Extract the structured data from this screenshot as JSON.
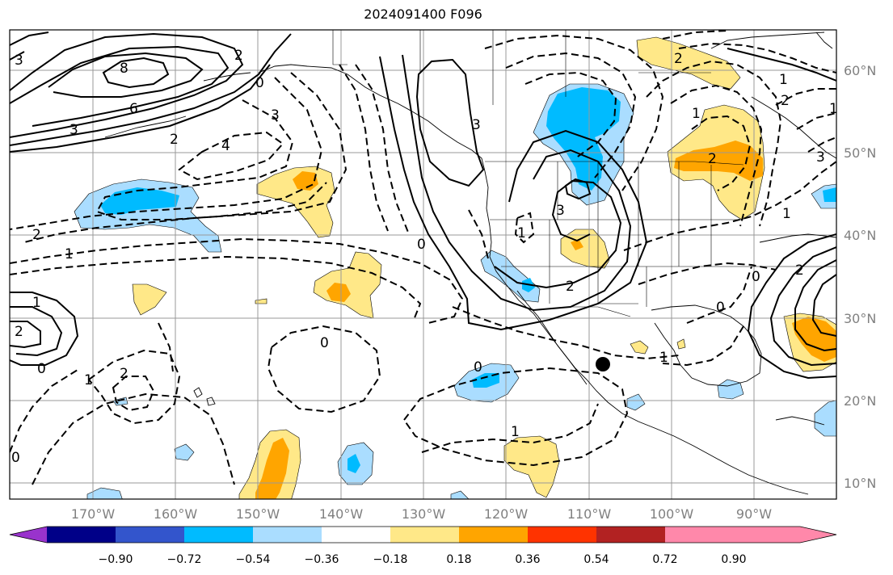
{
  "title": "2024091400 F096",
  "lat_labels": [
    "60°N",
    "50°N",
    "40°N",
    "30°N",
    "20°N",
    "10°N"
  ],
  "lon_labels": [
    "170°W",
    "160°W",
    "150°W",
    "140°W",
    "130°W",
    "120°W",
    "110°W",
    "100°W",
    "90°W"
  ],
  "colorbar": {
    "colors": [
      "#9933cc",
      "#000088",
      "#3355cc",
      "#00bbff",
      "#aaddff",
      "#ffffff",
      "#ffe888",
      "#ffa500",
      "#ff3300",
      "#b22222",
      "#ff88aa"
    ],
    "ticks": [
      "−0.90",
      "−0.72",
      "−0.54",
      "−0.36",
      "−0.18",
      "0.18",
      "0.36",
      "0.54",
      "0.72",
      "0.90"
    ]
  },
  "contour_labels": [
    "8",
    "6",
    "3",
    "3",
    "2",
    "4",
    "2",
    "3",
    "1",
    "1",
    "0",
    "0",
    "3",
    "2",
    "1",
    "1",
    "3",
    "0",
    "2",
    "1",
    "1",
    "2",
    "0",
    "1",
    "0",
    "1",
    "2",
    "0",
    "2",
    "1",
    "2",
    "2",
    "0",
    "3",
    "2",
    "0",
    "1"
  ],
  "marker": "point"
}
